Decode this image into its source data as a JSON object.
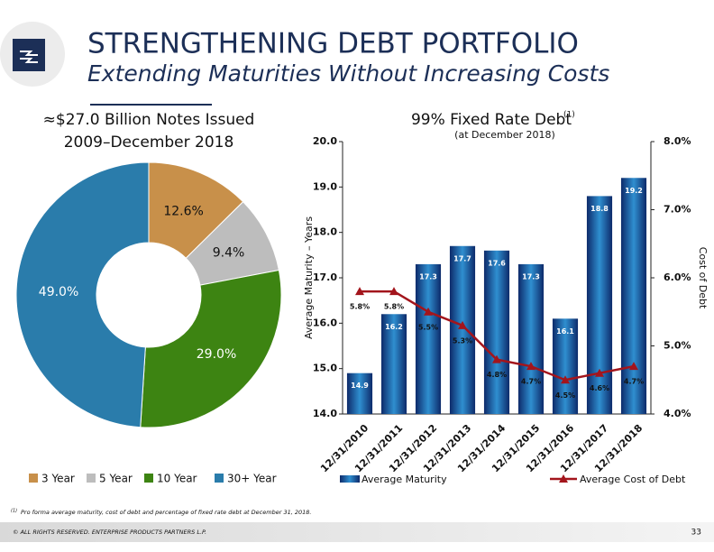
{
  "header": {
    "title": "STRENGTHENING DEBT PORTFOLIO",
    "subtitle": "Extending Maturities Without Increasing Costs"
  },
  "chart_data": [
    {
      "type": "donut",
      "title": "≈$27.0 Billion Notes Issued",
      "subtitle": "2009–December 2018",
      "categories": [
        "3 Year",
        "5 Year",
        "10 Year",
        "30+ Year"
      ],
      "values": [
        12.6,
        9.4,
        29.0,
        49.0
      ],
      "value_labels": [
        "12.6%",
        "9.4%",
        "29.0%",
        "49.0%"
      ],
      "colors": [
        "#c8904a",
        "#bdbdbd",
        "#3d8412",
        "#2a7cab"
      ],
      "legend": "bottom"
    },
    {
      "type": "bar",
      "title": "99% Fixed Rate Debt",
      "title_note": "(1)",
      "subtitle": "(at December 2018)",
      "categories": [
        "12/31/2010",
        "12/31/2011",
        "12/31/2012",
        "12/31/2013",
        "12/31/2014",
        "12/31/2015",
        "12/31/2016",
        "12/31/2017",
        "12/31/2018"
      ],
      "series": [
        {
          "name": "Average Maturity",
          "color": "#1f5fa8",
          "values": [
            14.9,
            16.2,
            17.3,
            17.7,
            17.6,
            17.3,
            16.1,
            18.8,
            19.2
          ]
        },
        {
          "name": "Average Cost of Debt",
          "type": "line",
          "axis": "y2",
          "color": "#a3151c",
          "values": [
            5.8,
            5.8,
            5.5,
            5.3,
            4.8,
            4.7,
            4.5,
            4.6,
            4.7
          ],
          "value_labels": [
            "5.8%",
            "5.8%",
            "5.5%",
            "5.3%",
            "4.8%",
            "4.7%",
            "4.5%",
            "4.6%",
            "4.7%"
          ]
        }
      ],
      "ylim": [
        14,
        20
      ],
      "yticks": [
        {
          "value": 14,
          "label": "14.0"
        },
        {
          "value": 15,
          "label": "15.0"
        },
        {
          "value": 16,
          "label": "16.0"
        },
        {
          "value": 17,
          "label": "17.0"
        },
        {
          "value": 18,
          "label": "18.0"
        },
        {
          "value": 19,
          "label": "19.0"
        },
        {
          "value": 20,
          "label": "20.0"
        }
      ],
      "y2lim": [
        4,
        8
      ],
      "y2ticks": [
        {
          "value": 4,
          "label": "4.0%"
        },
        {
          "value": 5,
          "label": "5.0%"
        },
        {
          "value": 6,
          "label": "6.0%"
        },
        {
          "value": 7,
          "label": "7.0%"
        },
        {
          "value": 8,
          "label": "8.0%"
        }
      ],
      "ylabel": "Average Maturity – Years",
      "y2label": "Cost of Debt",
      "legend": "bottom"
    }
  ],
  "footnote": {
    "marker": "(1)",
    "text": "Pro forma average maturity, cost of debt and percentage of fixed rate debt at December 31, 2018."
  },
  "footer": {
    "copyright": "© ALL RIGHTS RESERVED. ENTERPRISE PRODUCTS PARTNERS L.P.",
    "page": "33"
  }
}
